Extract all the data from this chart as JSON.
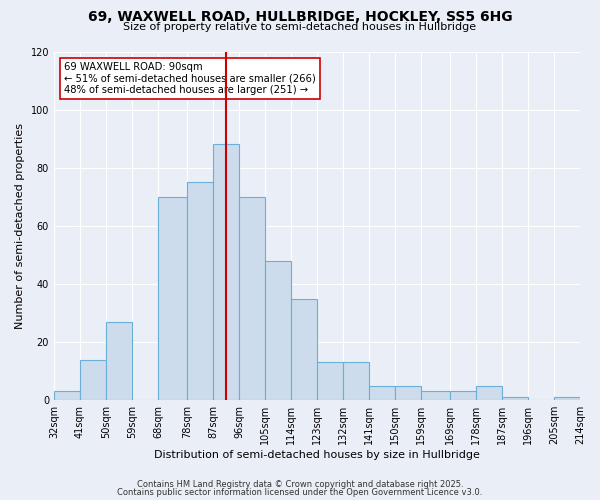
{
  "title": "69, WAXWELL ROAD, HULLBRIDGE, HOCKLEY, SS5 6HG",
  "subtitle": "Size of property relative to semi-detached houses in Hullbridge",
  "xlabel": "Distribution of semi-detached houses by size in Hullbridge",
  "ylabel": "Number of semi-detached properties",
  "bin_edges": [
    32,
    41,
    50,
    59,
    68,
    78,
    87,
    96,
    105,
    114,
    123,
    132,
    141,
    150,
    159,
    169,
    178,
    187,
    196,
    205,
    214
  ],
  "counts": [
    3,
    14,
    27,
    0,
    70,
    75,
    88,
    70,
    48,
    35,
    13,
    13,
    5,
    5,
    3,
    3,
    5,
    1,
    0,
    1
  ],
  "bar_color": "#ccdcec",
  "bar_edge_color": "#6baed6",
  "vline_x": 91.5,
  "vline_color": "#cc0000",
  "annotation_box_color": "#ffffff",
  "annotation_box_edge": "#cc0000",
  "annotation_line1": "69 WAXWELL ROAD: 90sqm",
  "annotation_line2": "← 51% of semi-detached houses are smaller (266)",
  "annotation_line3": "48% of semi-detached houses are larger (251) →",
  "ylim": [
    0,
    120
  ],
  "yticks": [
    0,
    20,
    40,
    60,
    80,
    100,
    120
  ],
  "footer1": "Contains HM Land Registry data © Crown copyright and database right 2025.",
  "footer2": "Contains public sector information licensed under the Open Government Licence v3.0.",
  "bg_color": "#eaeff7",
  "grid_color": "#ffffff",
  "title_fontsize": 10,
  "subtitle_fontsize": 8,
  "tick_fontsize": 7,
  "label_fontsize": 8,
  "footer_fontsize": 6
}
